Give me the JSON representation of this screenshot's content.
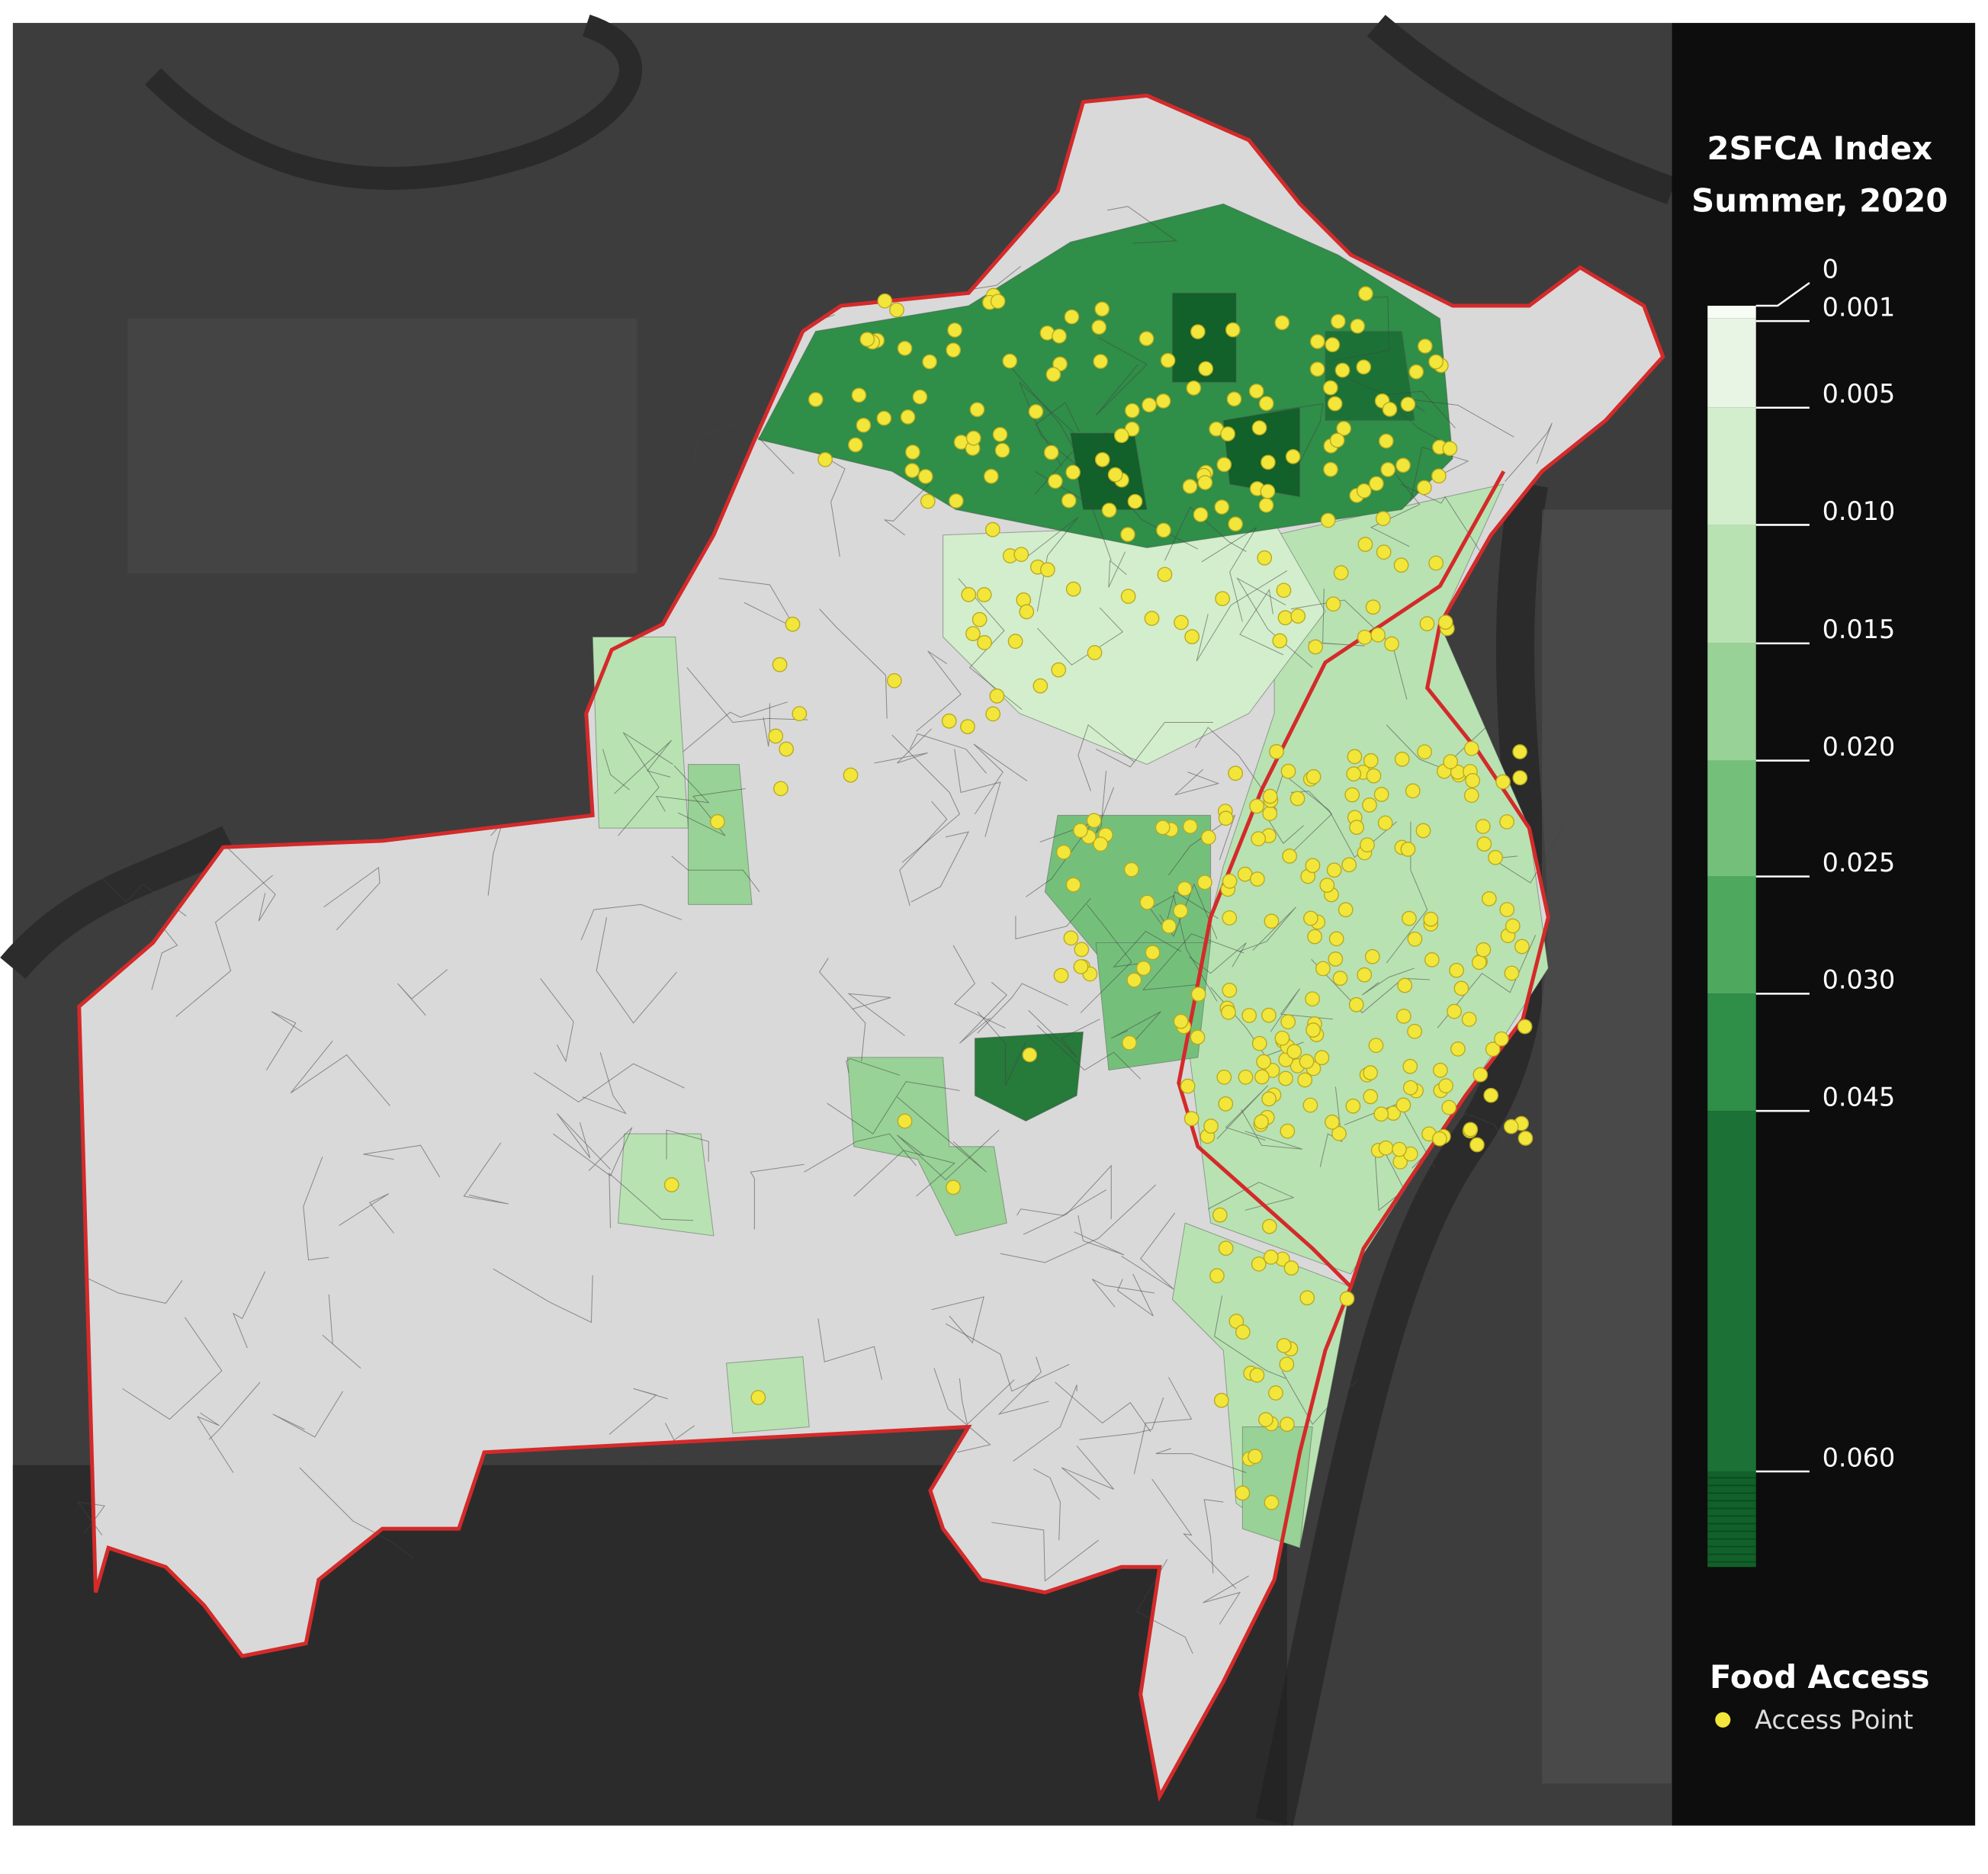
{
  "legend": {
    "title": "2SFCA Index",
    "subtitle": "Summer, 2020",
    "ticks": [
      "0",
      "0.001",
      "0.005",
      "0.010",
      "0.015",
      "0.020",
      "0.025",
      "0.030",
      "0.045",
      "0.060"
    ],
    "colors": [
      "#f7fcf5",
      "#e8f5e4",
      "#d3eecc",
      "#b8e2b2",
      "#98d296",
      "#74c07b",
      "#4ea95f",
      "#2f8e48",
      "#1c7236",
      "#12602a"
    ]
  },
  "points_legend": {
    "title": "Food Access",
    "item": "Access Point",
    "color": "#f2e63a"
  }
}
